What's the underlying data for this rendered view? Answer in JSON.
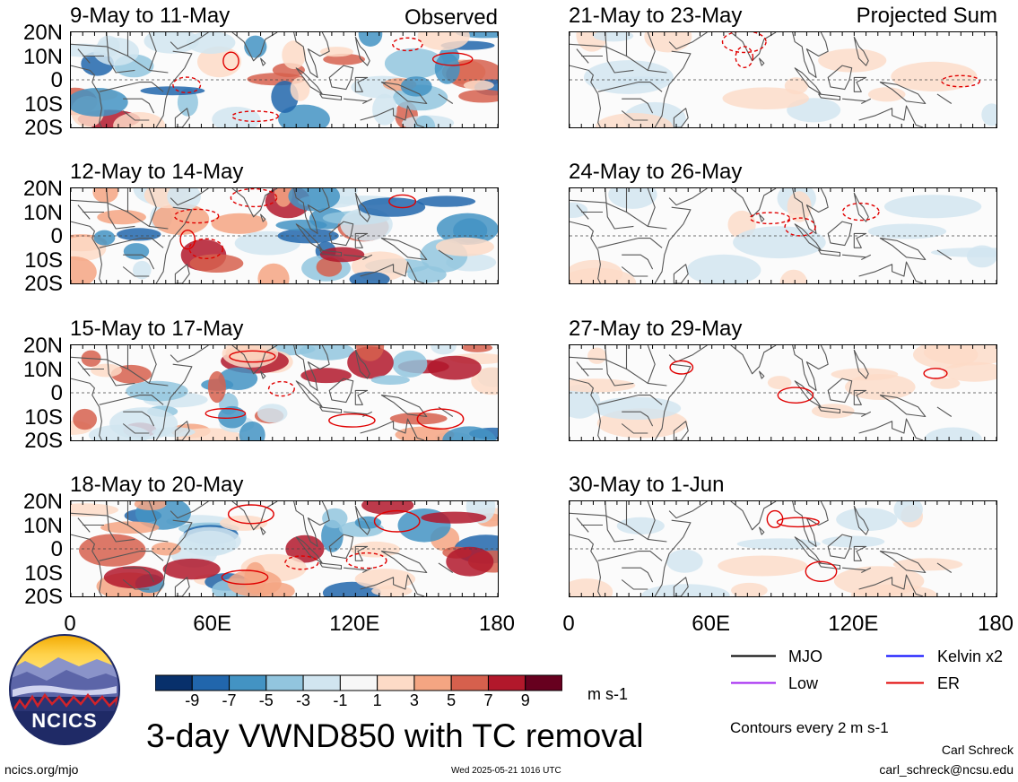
{
  "left_column_label": "Observed",
  "right_column_label": "Projected Sum",
  "panels": [
    {
      "title": "9-May to 11-May",
      "col": 0,
      "row": 0
    },
    {
      "title": "12-May to 14-May",
      "col": 0,
      "row": 1
    },
    {
      "title": "15-May to 17-May",
      "col": 0,
      "row": 2
    },
    {
      "title": "18-May to 20-May",
      "col": 0,
      "row": 3
    },
    {
      "title": "21-May to 23-May",
      "col": 1,
      "row": 0
    },
    {
      "title": "24-May to 26-May",
      "col": 1,
      "row": 1
    },
    {
      "title": "27-May to 29-May",
      "col": 1,
      "row": 2
    },
    {
      "title": "30-May to 1-Jun",
      "col": 1,
      "row": 3
    }
  ],
  "lat_ticks": [
    "20N",
    "10N",
    "0",
    "10S",
    "20S"
  ],
  "lon_ticks": [
    "0",
    "60E",
    "120E",
    "180"
  ],
  "colorbar": {
    "colors": [
      "#08306b",
      "#2166ac",
      "#4393c3",
      "#92c5de",
      "#d1e5f0",
      "#f7f7f7",
      "#fddbc7",
      "#f4a582",
      "#d6604d",
      "#b2182b",
      "#67001f"
    ],
    "labels": [
      "-9",
      "-7",
      "-5",
      "-3",
      "-1",
      "1",
      "3",
      "5",
      "7",
      "9"
    ],
    "units": "m s-1"
  },
  "legend": [
    {
      "label": "MJO",
      "color": "#000000"
    },
    {
      "label": "Kelvin x2",
      "color": "#0000ff"
    },
    {
      "label": "Low",
      "color": "#a020f0"
    },
    {
      "label": "ER",
      "color": "#e00000"
    }
  ],
  "contour_note": "Contours every 2 m s-1",
  "main_title": "3-day VWND850 with TC removal",
  "logo_text": "NCICS",
  "footer_left": "ncics.org/mjo",
  "footer_center": "Wed 2025-05-21 1016 UTC",
  "footer_right_name": "Carl Schreck",
  "footer_right_email": "carl_schreck@ncsu.edu"
}
